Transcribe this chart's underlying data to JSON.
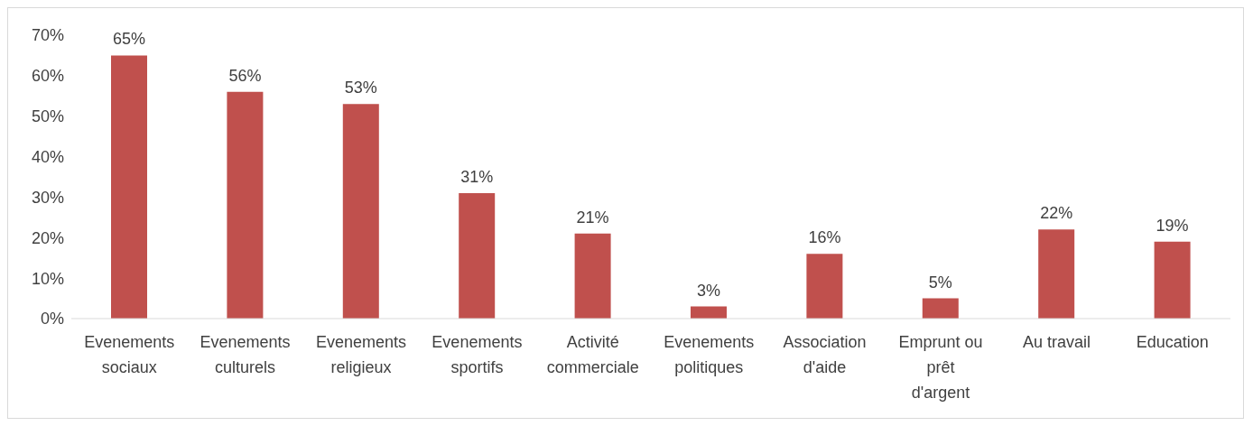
{
  "chart_data": {
    "type": "bar",
    "categories": [
      "Evenements sociaux",
      "Evenements culturels",
      "Evenements religieux",
      "Evenements sportifs",
      "Activité commerciale",
      "Evenements politiques",
      "Association d'aide",
      "Emprunt ou prêt d'argent",
      "Au travail",
      "Education"
    ],
    "values": [
      65,
      56,
      53,
      31,
      21,
      3,
      16,
      5,
      22,
      19
    ],
    "value_labels": [
      "65%",
      "56%",
      "53%",
      "31%",
      "21%",
      "3%",
      "16%",
      "5%",
      "22%",
      "19%"
    ],
    "color": "#c0504d",
    "ylim": [
      0,
      70
    ],
    "yticks": [
      {
        "value": 0,
        "label": "0%"
      },
      {
        "value": 10,
        "label": "10%"
      },
      {
        "value": 20,
        "label": "20%"
      },
      {
        "value": 30,
        "label": "30%"
      },
      {
        "value": 40,
        "label": "40%"
      },
      {
        "value": 50,
        "label": "50%"
      },
      {
        "value": 60,
        "label": "60%"
      },
      {
        "value": 70,
        "label": "70%"
      }
    ],
    "grid": false,
    "legend": false
  }
}
